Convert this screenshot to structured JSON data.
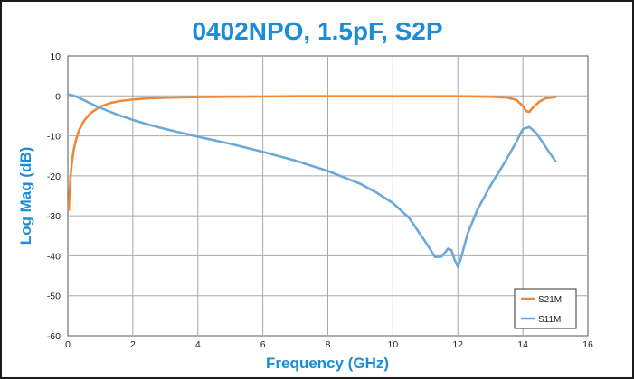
{
  "chart_data": {
    "type": "line",
    "title": "0402NPO, 1.5pF, S2P",
    "xlabel": "Frequency (GHz)",
    "ylabel": "Log Mag (dB)",
    "xlim": [
      0,
      16
    ],
    "ylim": [
      -60,
      10
    ],
    "xticks": [
      0,
      2,
      4,
      6,
      8,
      10,
      12,
      14,
      16
    ],
    "yticks": [
      10,
      0,
      -10,
      -20,
      -30,
      -40,
      -50,
      -60
    ],
    "xtick_labels": [
      "0",
      "2",
      "4",
      "6",
      "8",
      "10",
      "12",
      "14",
      "16"
    ],
    "ytick_labels": [
      "10",
      "0",
      "-10",
      "-20",
      "-30",
      "-40",
      "-50",
      "-60"
    ],
    "grid": true,
    "legend_position": "bottom-right",
    "series": [
      {
        "name": "S21M",
        "color": "#f0883a",
        "x": [
          0.03,
          0.05,
          0.08,
          0.12,
          0.18,
          0.25,
          0.35,
          0.5,
          0.7,
          1.0,
          1.3,
          1.6,
          2.0,
          2.5,
          3.0,
          4.0,
          5.0,
          6.0,
          7.0,
          8.0,
          9.0,
          10.0,
          11.0,
          12.0,
          13.0,
          13.5,
          13.8,
          14.0,
          14.1,
          14.2,
          14.3,
          14.5,
          14.7,
          15.0
        ],
        "values": [
          -28.5,
          -24.5,
          -20.5,
          -17.0,
          -13.5,
          -11.0,
          -8.5,
          -6.2,
          -4.3,
          -2.7,
          -1.8,
          -1.3,
          -0.9,
          -0.6,
          -0.45,
          -0.3,
          -0.2,
          -0.15,
          -0.1,
          -0.1,
          -0.1,
          -0.1,
          -0.1,
          -0.1,
          -0.2,
          -0.4,
          -1.0,
          -2.5,
          -3.8,
          -4.0,
          -3.0,
          -1.5,
          -0.6,
          -0.3
        ]
      },
      {
        "name": "S11M",
        "color": "#6aa9d8",
        "x": [
          0,
          0.2,
          0.4,
          0.6,
          0.8,
          1.0,
          1.5,
          2.0,
          2.5,
          3.0,
          4.0,
          5.0,
          6.0,
          7.0,
          8.0,
          9.0,
          9.5,
          10.0,
          10.5,
          11.0,
          11.3,
          11.5,
          11.7,
          11.8,
          11.9,
          12.0,
          12.1,
          12.3,
          12.6,
          13.0,
          13.5,
          13.8,
          14.0,
          14.2,
          14.4,
          14.6,
          14.8,
          15.0
        ],
        "values": [
          0.4,
          0,
          -0.7,
          -1.5,
          -2.3,
          -3.0,
          -4.6,
          -6.0,
          -7.2,
          -8.3,
          -10.2,
          -12.0,
          -14.0,
          -16.2,
          -18.8,
          -22.0,
          -24.2,
          -26.8,
          -30.5,
          -36.5,
          -40.3,
          -40.2,
          -38.2,
          -38.6,
          -41.0,
          -42.8,
          -40.5,
          -34.5,
          -28.5,
          -22.5,
          -15.8,
          -11.5,
          -8.3,
          -7.8,
          -9.2,
          -11.5,
          -14.0,
          -16.3
        ]
      }
    ]
  },
  "style": {
    "title_color": "#1a8cd8",
    "axis_title_color": "#1a8cd8",
    "grid_color": "#a8a8a8",
    "border_color": "#1a1a1a"
  }
}
